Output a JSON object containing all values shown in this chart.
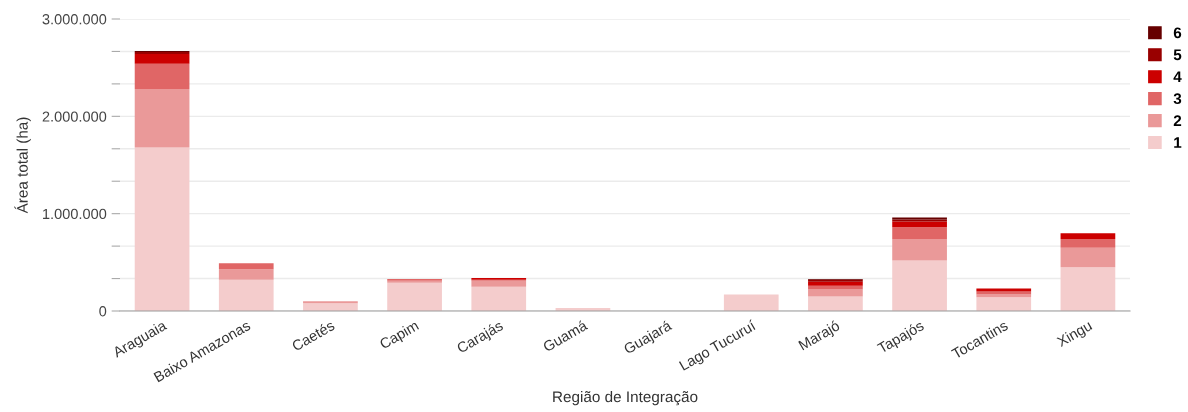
{
  "chart_data": {
    "type": "bar",
    "stacked": true,
    "xlabel": "Região de Integração",
    "ylabel": "Área total (ha)",
    "categories": [
      "Araguaia",
      "Baixo Amazonas",
      "Caetés",
      "Capim",
      "Carajás",
      "Guamá",
      "Guajará",
      "Lago Tucuruí",
      "Marajó",
      "Tapajós",
      "Tocantins",
      "Xingu"
    ],
    "series": [
      {
        "name": "1",
        "color": "#f4cccc",
        "values": [
          1680000,
          320000,
          80000,
          290000,
          250000,
          30000,
          null,
          170000,
          150000,
          520000,
          140000,
          450000
        ]
      },
      {
        "name": "2",
        "color": "#ea9999",
        "values": [
          600000,
          110000,
          20000,
          20000,
          60000,
          null,
          null,
          null,
          70000,
          220000,
          30000,
          200000
        ]
      },
      {
        "name": "3",
        "color": "#e06666",
        "values": [
          260000,
          60000,
          null,
          20000,
          10000,
          null,
          null,
          null,
          40000,
          120000,
          30000,
          90000
        ]
      },
      {
        "name": "4",
        "color": "#cc0000",
        "values": [
          100000,
          null,
          null,
          null,
          20000,
          null,
          null,
          null,
          40000,
          60000,
          30000,
          60000
        ]
      },
      {
        "name": "5",
        "color": "#990000",
        "values": [
          20000,
          null,
          null,
          null,
          null,
          null,
          null,
          null,
          20000,
          20000,
          null,
          null
        ]
      },
      {
        "name": "6",
        "color": "#660000",
        "values": [
          10000,
          null,
          null,
          null,
          null,
          null,
          null,
          null,
          10000,
          20000,
          null,
          null
        ]
      }
    ],
    "ylim": [
      0,
      3000000
    ],
    "yticks": [
      {
        "value": 0,
        "label": "0"
      },
      {
        "value": 333333,
        "label": null
      },
      {
        "value": 666667,
        "label": null
      },
      {
        "value": 1000000,
        "label": "1.000.000"
      },
      {
        "value": 1333333,
        "label": null
      },
      {
        "value": 1666667,
        "label": null
      },
      {
        "value": 2000000,
        "label": "2.000.000"
      },
      {
        "value": 2333333,
        "label": null
      },
      {
        "value": 2666667,
        "label": null
      },
      {
        "value": 3000000,
        "label": "3.000.000"
      }
    ],
    "grid": "y",
    "legend": "top right"
  }
}
